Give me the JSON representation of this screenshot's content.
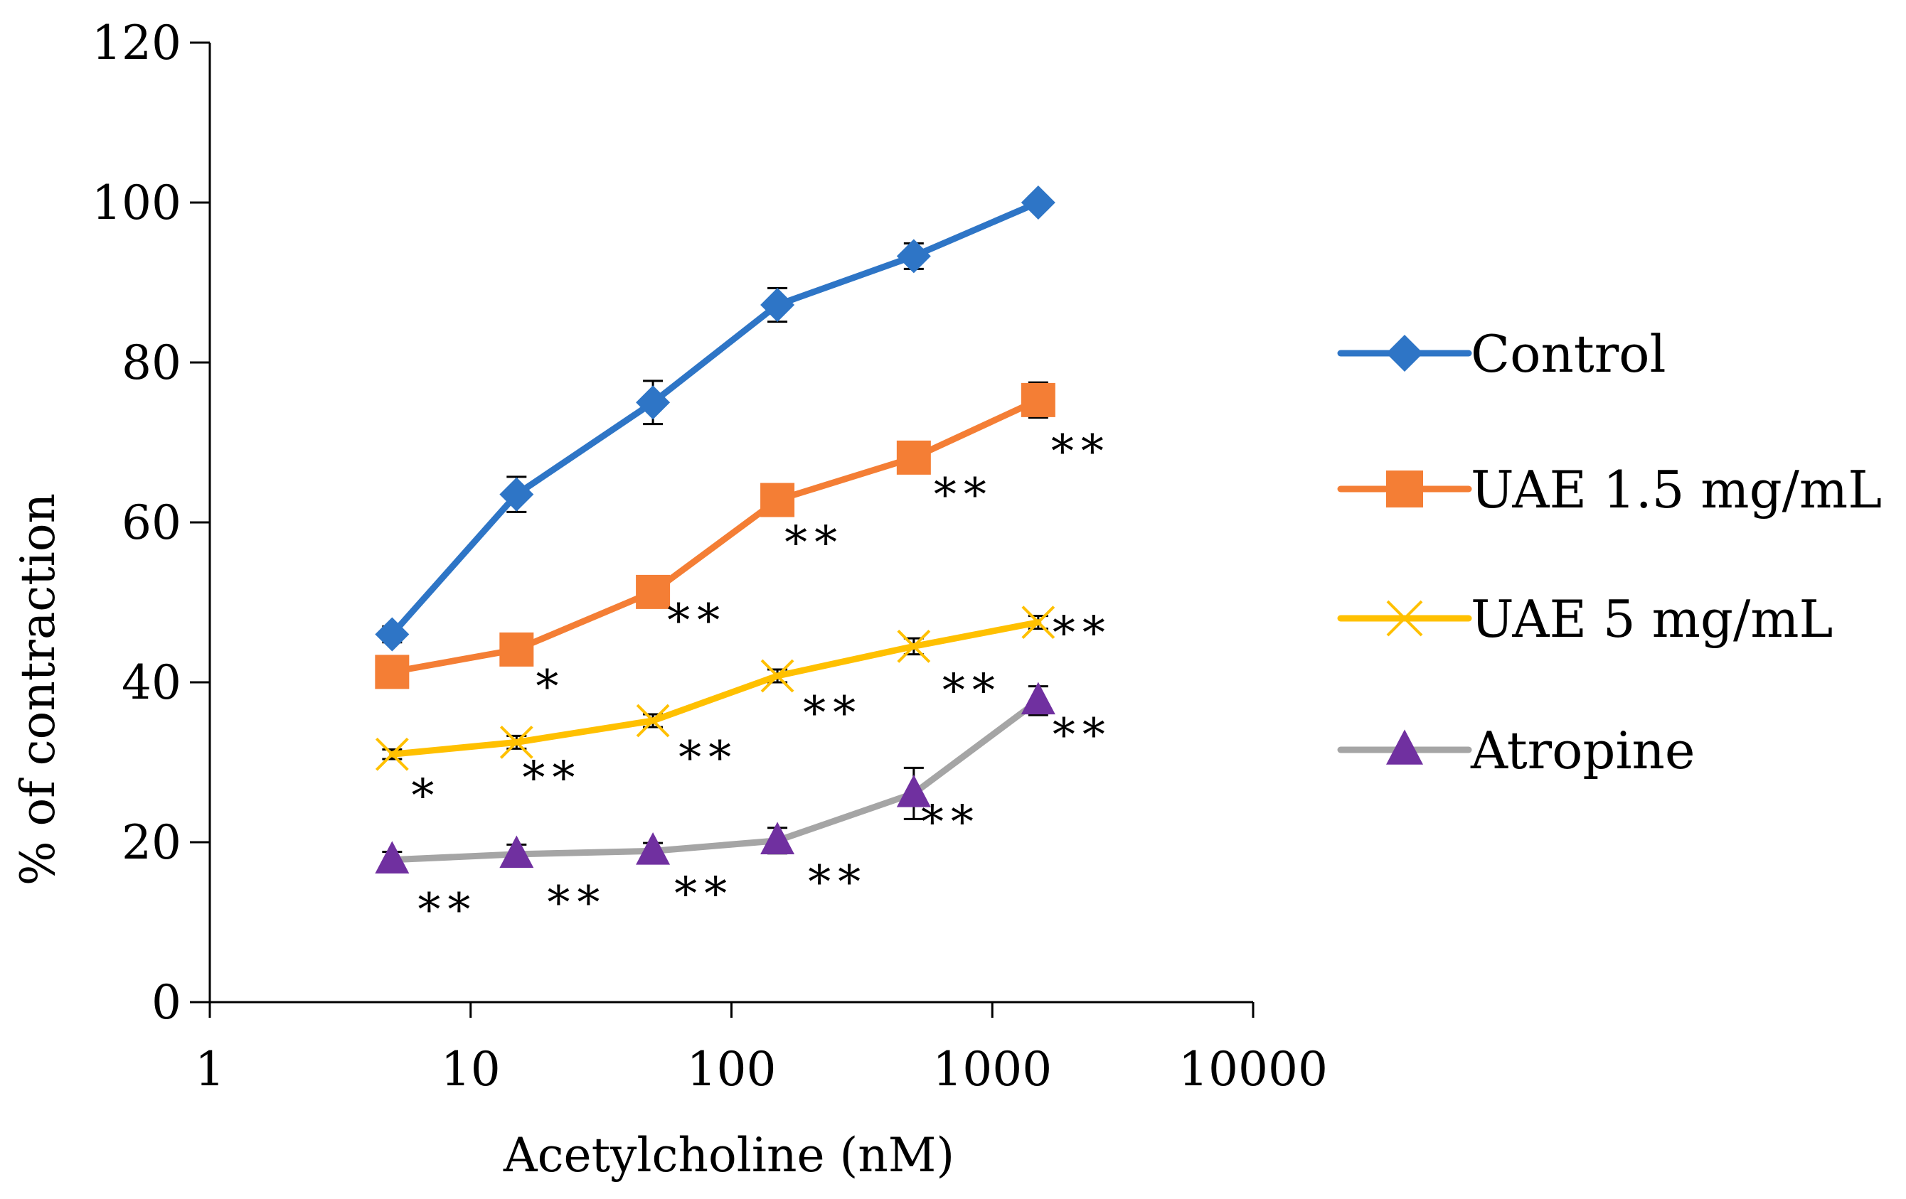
{
  "chart_data": {
    "type": "line",
    "title": "",
    "xlabel": "Acetylcholine (nM)",
    "ylabel": "% of contraction",
    "xscale": "log",
    "xlim": [
      1,
      10000
    ],
    "ylim": [
      0,
      120
    ],
    "x_ticks": [
      "1",
      "10",
      "100",
      "1000",
      "10000"
    ],
    "y_ticks": [
      "0",
      "20",
      "40",
      "60",
      "80",
      "100",
      "120"
    ],
    "x": [
      5,
      15,
      50,
      150,
      500,
      1500
    ],
    "legend_position": "right",
    "grid": false,
    "series": [
      {
        "name": "Control",
        "color": "#2E75C6",
        "marker": "diamond",
        "values": [
          46,
          63.5,
          75,
          87.2,
          93.3,
          100
        ],
        "errors": [
          1,
          2.2,
          2.7,
          2.1,
          1.6,
          0.8
        ],
        "significance": [
          "",
          "",
          "",
          "",
          "",
          ""
        ]
      },
      {
        "name": "UAE 1.5 mg/mL",
        "color": "#F47E35",
        "marker": "square",
        "values": [
          41.3,
          44.1,
          51.3,
          62.8,
          68.1,
          75.3
        ],
        "errors": [
          1,
          1,
          1,
          1,
          1,
          2.2
        ],
        "significance": [
          "",
          "*",
          "**",
          "**",
          "**",
          "**"
        ]
      },
      {
        "name": "UAE 5 mg/mL",
        "color": "#FFC000",
        "marker": "x",
        "values": [
          31,
          32.5,
          35.2,
          40.8,
          44.5,
          47.5
        ],
        "errors": [
          0.6,
          0.8,
          0.8,
          0.8,
          1,
          0.8
        ],
        "significance": [
          "*",
          "**",
          "**",
          "**",
          "**",
          "**"
        ]
      },
      {
        "name": "Atropine",
        "color": "#A5A5A5",
        "marker_color": "#7030A0",
        "marker": "triangle",
        "values": [
          17.8,
          18.5,
          18.9,
          20.2,
          26.1,
          37.7
        ],
        "errors": [
          1,
          1.2,
          1,
          1.6,
          3.2,
          1.8
        ],
        "significance": [
          "**",
          "**",
          "**",
          "**",
          "**",
          "**"
        ]
      }
    ]
  }
}
